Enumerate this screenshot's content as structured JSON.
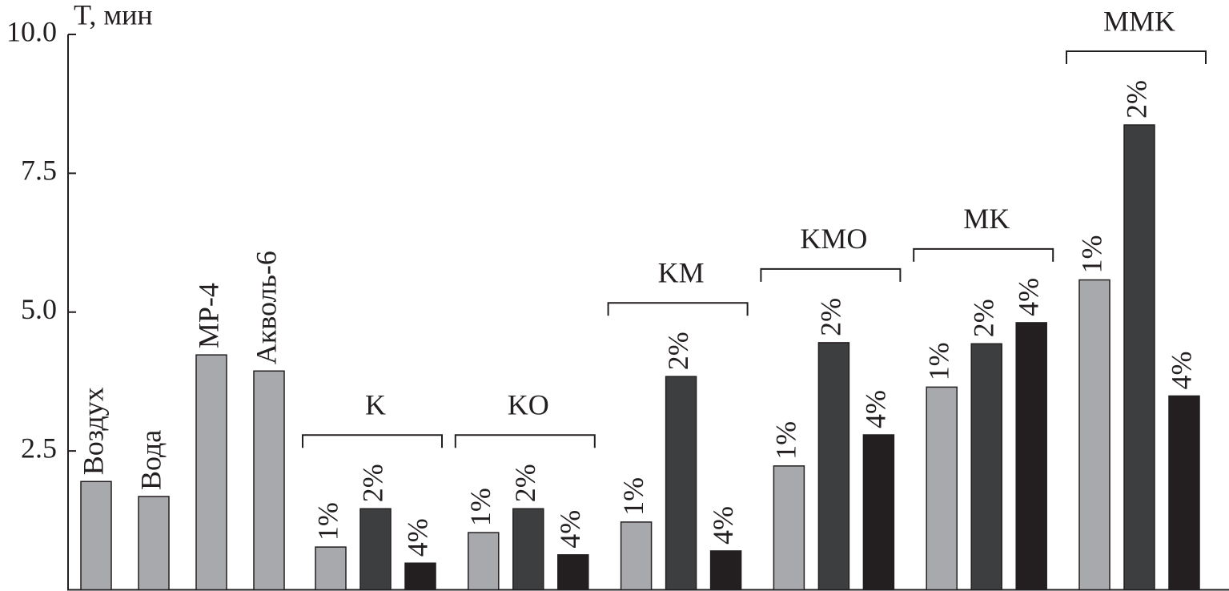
{
  "chart_data": {
    "type": "bar",
    "y_label": "T, мин",
    "ylim": [
      0,
      10
    ],
    "yticks": [
      2.5,
      {
        "value": 5,
        "label": "5.0"
      },
      7.5,
      {
        "value": 10,
        "label": "10.0"
      }
    ],
    "categories": [
      "Воздух",
      "Вода",
      "МР-4",
      "Акволь-6"
    ],
    "values": [
      1.95,
      1.68,
      4.23,
      3.94
    ],
    "color": "#a8a9ac",
    "colors": [
      "#a8a9ac",
      "#3d3e40",
      "#231f20"
    ],
    "groups": [
      {
        "name": "K",
        "categories": [
          "1%",
          "2%",
          "4%"
        ],
        "values": [
          0.77,
          1.46,
          0.48
        ]
      },
      {
        "name": "KO",
        "categories": [
          "1%",
          "2%",
          "4%"
        ],
        "values": [
          1.03,
          1.46,
          0.63
        ]
      },
      {
        "name": "KM",
        "categories": [
          "1%",
          "2%",
          "4%"
        ],
        "values": [
          1.22,
          3.84,
          0.7
        ]
      },
      {
        "name": "KMO",
        "categories": [
          "1%",
          "2%",
          "4%"
        ],
        "values": [
          2.23,
          4.45,
          2.79
        ]
      },
      {
        "name": "MK",
        "categories": [
          "1%",
          "2%",
          "4%"
        ],
        "values": [
          3.65,
          4.43,
          4.81
        ]
      },
      {
        "name": "MMK",
        "categories": [
          "1%",
          "2%",
          "4%"
        ],
        "values": [
          5.58,
          8.37,
          3.49
        ]
      }
    ]
  }
}
